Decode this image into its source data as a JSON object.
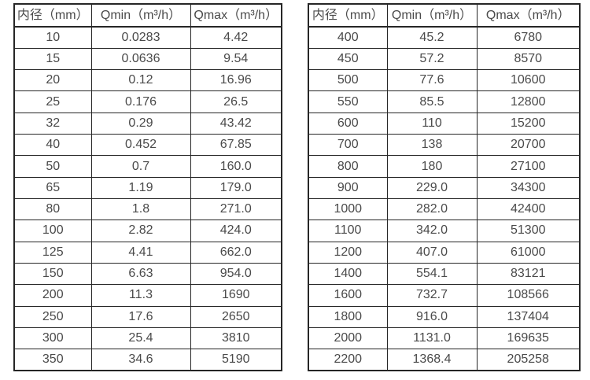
{
  "colors": {
    "background": "#ffffff",
    "border": "#262626",
    "text": "#4a4a4a"
  },
  "tables": [
    {
      "name": "small-diameter-flow-table",
      "headers": [
        "内径（mm）",
        "Qmin（m³/h）",
        "Qmax（m³/h）"
      ],
      "rows": [
        [
          "10",
          "0.0283",
          "4.42"
        ],
        [
          "15",
          "0.0636",
          "9.54"
        ],
        [
          "20",
          "0.12",
          "16.96"
        ],
        [
          "25",
          "0.176",
          "26.5"
        ],
        [
          "32",
          "0.29",
          "43.42"
        ],
        [
          "40",
          "0.452",
          "67.85"
        ],
        [
          "50",
          "0.7",
          "160.0"
        ],
        [
          "65",
          "1.19",
          "179.0"
        ],
        [
          "80",
          "1.8",
          "271.0"
        ],
        [
          "100",
          "2.82",
          "424.0"
        ],
        [
          "125",
          "4.41",
          "662.0"
        ],
        [
          "150",
          "6.63",
          "954.0"
        ],
        [
          "200",
          "11.3",
          "1690"
        ],
        [
          "250",
          "17.6",
          "2650"
        ],
        [
          "300",
          "25.4",
          "3810"
        ],
        [
          "350",
          "34.6",
          "5190"
        ]
      ]
    },
    {
      "name": "large-diameter-flow-table",
      "headers": [
        "内径（mm）",
        "Qmin（m³/h）",
        "Qmax（m³/h）"
      ],
      "rows": [
        [
          "400",
          "45.2",
          "6780"
        ],
        [
          "450",
          "57.2",
          "8570"
        ],
        [
          "500",
          "77.6",
          "10600"
        ],
        [
          "550",
          "85.5",
          "12800"
        ],
        [
          "600",
          "110",
          "15200"
        ],
        [
          "700",
          "138",
          "20700"
        ],
        [
          "800",
          "180",
          "27100"
        ],
        [
          "900",
          "229.0",
          "34300"
        ],
        [
          "1000",
          "282.0",
          "42400"
        ],
        [
          "1100",
          "342.0",
          "51300"
        ],
        [
          "1200",
          "407.0",
          "61000"
        ],
        [
          "1400",
          "554.1",
          "83121"
        ],
        [
          "1600",
          "732.7",
          "108566"
        ],
        [
          "1800",
          "916.0",
          "137404"
        ],
        [
          "2000",
          "1131.0",
          "169635"
        ],
        [
          "2200",
          "1368.4",
          "205258"
        ]
      ]
    }
  ]
}
